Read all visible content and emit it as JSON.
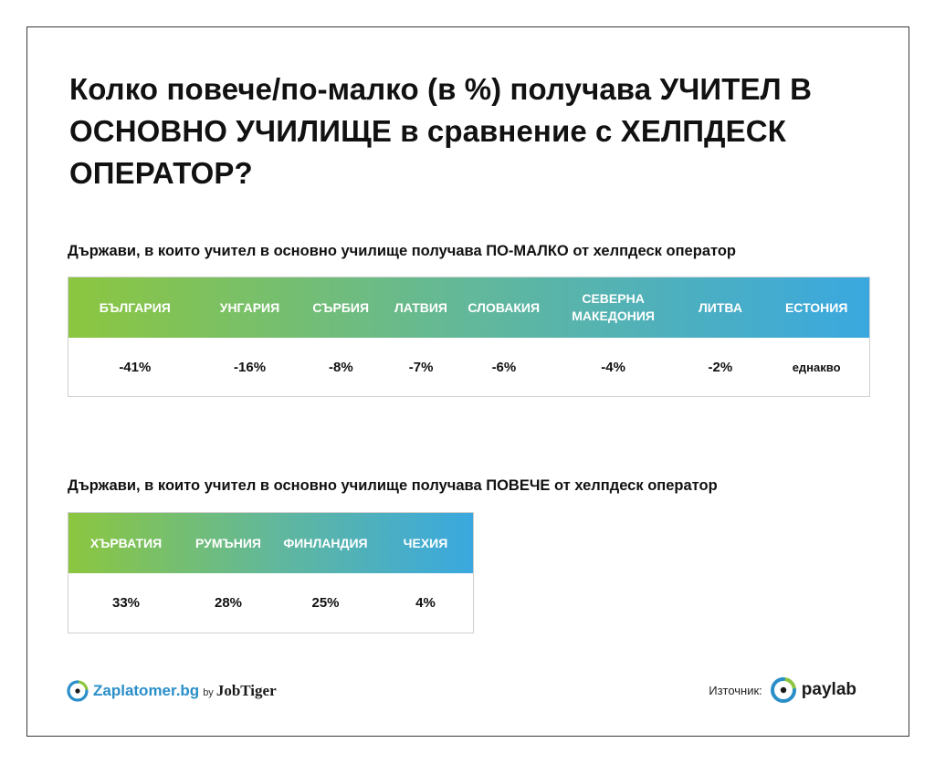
{
  "title": "Колко повече/по-малко (в %) получава УЧИТЕЛ В ОСНОВНО УЧИЛИЩЕ в сравнение с ХЕЛПДЕСК ОПЕРАТОР?",
  "less_section": {
    "heading": "Държави, в които учител в основно училище получава ПО-МАЛКО от хелпдеск оператор",
    "countries": [
      "БЪЛГАРИЯ",
      "УНГАРИЯ",
      "СЪРБИЯ",
      "ЛАТВИЯ",
      "СЛОВАКИЯ",
      "СЕВЕРНА МАКЕДОНИЯ",
      "ЛИТВА",
      "ЕСТОНИЯ"
    ],
    "values": [
      "-41%",
      "-16%",
      "-8%",
      "-7%",
      "-6%",
      "-4%",
      "-2%",
      "еднакво"
    ]
  },
  "more_section": {
    "heading": "Държави, в които учител в основно училище получава ПОВЕЧЕ от хелпдеск оператор",
    "countries": [
      "ХЪРВАТИЯ",
      "РУМЪНИЯ",
      "ФИНЛАНДИЯ",
      "ЧЕХИЯ"
    ],
    "values": [
      "33%",
      "28%",
      "25%",
      "4%"
    ]
  },
  "footer": {
    "brand": "Zaplatomer.bg",
    "by": "by",
    "partner": "JobTiger",
    "source_label": "Източник:",
    "source_brand": "paylab"
  },
  "colors": {
    "gradient_start": "#8cc63f",
    "gradient_end": "#3aa8e0",
    "brand_blue": "#2a8fc9",
    "brand_green": "#8cc63f"
  }
}
